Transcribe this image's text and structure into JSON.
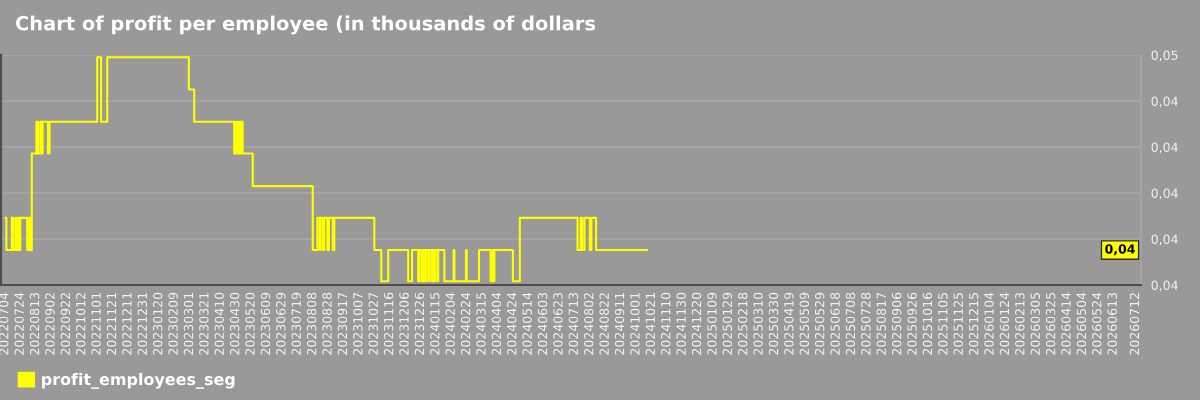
{
  "chart_data": {
    "type": "step",
    "title": "Chart of profit per employee (in thousands of dollars",
    "x": [
      "2022-07-05",
      "2022-07-06",
      "2022-07-13",
      "2022-07-15",
      "2022-07-18",
      "2022-07-20",
      "2022-07-22",
      "2022-07-23",
      "2022-07-24",
      "2022-08-02",
      "2022-08-03",
      "2022-08-05",
      "2022-08-06",
      "2022-08-07",
      "2022-08-08",
      "2022-08-14",
      "2022-08-16",
      "2022-08-19",
      "2022-08-21",
      "2022-08-22",
      "2022-08-29",
      "2022-08-31",
      "2022-11-01",
      "2022-11-06",
      "2022-11-14",
      "2023-02-28",
      "2023-03-07",
      "2023-04-28",
      "2023-04-30",
      "2023-05-02",
      "2023-05-04",
      "2023-05-06",
      "2023-05-07",
      "2023-05-09",
      "2023-05-22",
      "2023-08-08",
      "2023-08-14",
      "2023-08-17",
      "2023-08-18",
      "2023-08-21",
      "2023-08-23",
      "2023-08-27",
      "2023-08-29",
      "2023-09-03",
      "2023-09-05",
      "2023-10-27",
      "2023-11-05",
      "2023-11-14",
      "2023-12-10",
      "2023-12-15",
      "2023-12-23",
      "2023-12-25",
      "2023-12-28",
      "2023-12-30",
      "2024-01-01",
      "2024-01-02",
      "2024-01-05",
      "2024-01-06",
      "2024-01-09",
      "2024-01-10",
      "2024-01-12",
      "2024-01-14",
      "2024-01-17",
      "2024-01-18",
      "2024-01-26",
      "2024-02-07",
      "2024-02-08",
      "2024-02-23",
      "2024-02-24",
      "2024-03-11",
      "2024-03-26",
      "2024-03-28",
      "2024-03-30",
      "2024-03-31",
      "2024-04-24",
      "2024-05-03",
      "2024-07-17",
      "2024-07-21",
      "2024-07-23",
      "2024-07-26",
      "2024-08-02",
      "2024-08-04",
      "2024-08-10",
      "2024-10-15"
    ],
    "series": [
      {
        "name": "profit_employees_seg",
        "color": "#ffff00",
        "values": [
          0.04196,
          0.04126,
          0.04196,
          0.04126,
          0.04196,
          0.04126,
          0.04196,
          0.04126,
          0.04196,
          0.04126,
          0.04196,
          0.04126,
          0.04196,
          0.04126,
          0.04336,
          0.04405,
          0.04336,
          0.04405,
          0.04336,
          0.04405,
          0.04336,
          0.04405,
          0.04545,
          0.04405,
          0.04545,
          0.04475,
          0.04405,
          0.04336,
          0.04405,
          0.04336,
          0.04405,
          0.04336,
          0.04405,
          0.04336,
          0.04265,
          0.04126,
          0.04196,
          0.04126,
          0.04196,
          0.04126,
          0.04196,
          0.04126,
          0.04196,
          0.04126,
          0.04196,
          0.04126,
          0.04058,
          0.04126,
          0.04058,
          0.04126,
          0.04058,
          0.04126,
          0.04058,
          0.04126,
          0.04058,
          0.04126,
          0.04058,
          0.04126,
          0.04058,
          0.04126,
          0.04058,
          0.04126,
          0.04058,
          0.04126,
          0.04058,
          0.04126,
          0.04058,
          0.04126,
          0.04058,
          0.04126,
          0.04058,
          0.04126,
          0.04058,
          0.04126,
          0.04058,
          0.04196,
          0.04126,
          0.04196,
          0.04126,
          0.04196,
          0.04126,
          0.04196,
          0.04126,
          0.04126
        ]
      }
    ],
    "xlim": [
      "2022-06-29",
      "2026-07-19"
    ],
    "xticks": [
      {
        "value": "2022-07-04",
        "label": "20220704"
      },
      {
        "value": "2022-07-24",
        "label": "20220724"
      },
      {
        "value": "2022-08-13",
        "label": "20220813"
      },
      {
        "value": "2022-09-02",
        "label": "20220902"
      },
      {
        "value": "2022-09-22",
        "label": "20220922"
      },
      {
        "value": "2022-10-12",
        "label": "20221012"
      },
      {
        "value": "2022-11-01",
        "label": "20221101"
      },
      {
        "value": "2022-11-21",
        "label": "20221121"
      },
      {
        "value": "2022-12-11",
        "label": "20221211"
      },
      {
        "value": "2022-12-31",
        "label": "20221231"
      },
      {
        "value": "2023-01-20",
        "label": "20230120"
      },
      {
        "value": "2023-02-09",
        "label": "20230209"
      },
      {
        "value": "2023-03-01",
        "label": "20230301"
      },
      {
        "value": "2023-03-21",
        "label": "20230321"
      },
      {
        "value": "2023-04-10",
        "label": "20230410"
      },
      {
        "value": "2023-04-30",
        "label": "20230430"
      },
      {
        "value": "2023-05-20",
        "label": "20230520"
      },
      {
        "value": "2023-06-09",
        "label": "20230609"
      },
      {
        "value": "2023-06-29",
        "label": "20230629"
      },
      {
        "value": "2023-07-19",
        "label": "20230719"
      },
      {
        "value": "2023-08-08",
        "label": "20230808"
      },
      {
        "value": "2023-08-28",
        "label": "20230828"
      },
      {
        "value": "2023-09-17",
        "label": "20230917"
      },
      {
        "value": "2023-10-07",
        "label": "20231007"
      },
      {
        "value": "2023-10-27",
        "label": "20231027"
      },
      {
        "value": "2023-11-16",
        "label": "20231116"
      },
      {
        "value": "2023-12-06",
        "label": "20231206"
      },
      {
        "value": "2023-12-26",
        "label": "20231226"
      },
      {
        "value": "2024-01-15",
        "label": "20240115"
      },
      {
        "value": "2024-02-04",
        "label": "20240204"
      },
      {
        "value": "2024-02-24",
        "label": "20240224"
      },
      {
        "value": "2024-03-15",
        "label": "20240315"
      },
      {
        "value": "2024-04-04",
        "label": "20240404"
      },
      {
        "value": "2024-04-24",
        "label": "20240424"
      },
      {
        "value": "2024-05-14",
        "label": "20240514"
      },
      {
        "value": "2024-06-03",
        "label": "20240603"
      },
      {
        "value": "2024-06-23",
        "label": "20240623"
      },
      {
        "value": "2024-07-13",
        "label": "20240713"
      },
      {
        "value": "2024-08-02",
        "label": "20240802"
      },
      {
        "value": "2024-08-22",
        "label": "20240822"
      },
      {
        "value": "2024-09-11",
        "label": "20240911"
      },
      {
        "value": "2024-10-01",
        "label": "20241001"
      },
      {
        "value": "2024-10-21",
        "label": "20241021"
      },
      {
        "value": "2024-11-10",
        "label": "20241110"
      },
      {
        "value": "2024-11-30",
        "label": "20241130"
      },
      {
        "value": "2024-12-20",
        "label": "20241220"
      },
      {
        "value": "2025-01-09",
        "label": "20250109"
      },
      {
        "value": "2025-01-29",
        "label": "20250129"
      },
      {
        "value": "2025-02-18",
        "label": "20250218"
      },
      {
        "value": "2025-03-10",
        "label": "20250310"
      },
      {
        "value": "2025-03-30",
        "label": "20250330"
      },
      {
        "value": "2025-04-19",
        "label": "20250419"
      },
      {
        "value": "2025-05-09",
        "label": "20250509"
      },
      {
        "value": "2025-05-29",
        "label": "20250529"
      },
      {
        "value": "2025-06-18",
        "label": "20250618"
      },
      {
        "value": "2025-07-08",
        "label": "20250708"
      },
      {
        "value": "2025-07-28",
        "label": "20250728"
      },
      {
        "value": "2025-08-17",
        "label": "20250817"
      },
      {
        "value": "2025-09-06",
        "label": "20250906"
      },
      {
        "value": "2025-09-26",
        "label": "20250926"
      },
      {
        "value": "2025-10-16",
        "label": "20251016"
      },
      {
        "value": "2025-11-05",
        "label": "20251105"
      },
      {
        "value": "2025-11-25",
        "label": "20251125"
      },
      {
        "value": "2025-12-15",
        "label": "20251215"
      },
      {
        "value": "2026-01-04",
        "label": "20260104"
      },
      {
        "value": "2026-01-24",
        "label": "20260124"
      },
      {
        "value": "2026-02-13",
        "label": "20260213"
      },
      {
        "value": "2026-03-05",
        "label": "20260305"
      },
      {
        "value": "2026-03-25",
        "label": "20260325"
      },
      {
        "value": "2026-04-14",
        "label": "20260414"
      },
      {
        "value": "2026-05-04",
        "label": "20260504"
      },
      {
        "value": "2026-05-24",
        "label": "20260524"
      },
      {
        "value": "2026-06-13",
        "label": "20260613"
      },
      {
        "value": "2026-07-12",
        "label": "20260712"
      }
    ],
    "ylim": [
      0.0405,
      0.0455
    ],
    "yticks": [
      {
        "value": 0.0405,
        "label": "0,04"
      },
      {
        "value": 0.0415,
        "label": "0,04"
      },
      {
        "value": 0.0425,
        "label": "0,04"
      },
      {
        "value": 0.0435,
        "label": "0,04"
      },
      {
        "value": 0.0445,
        "label": "0,04"
      },
      {
        "value": 0.0455,
        "label": "0,05"
      }
    ],
    "grid": "y",
    "legend": "bottom",
    "annotations": [
      {
        "text": "0,04",
        "y": 0.04126
      }
    ]
  }
}
